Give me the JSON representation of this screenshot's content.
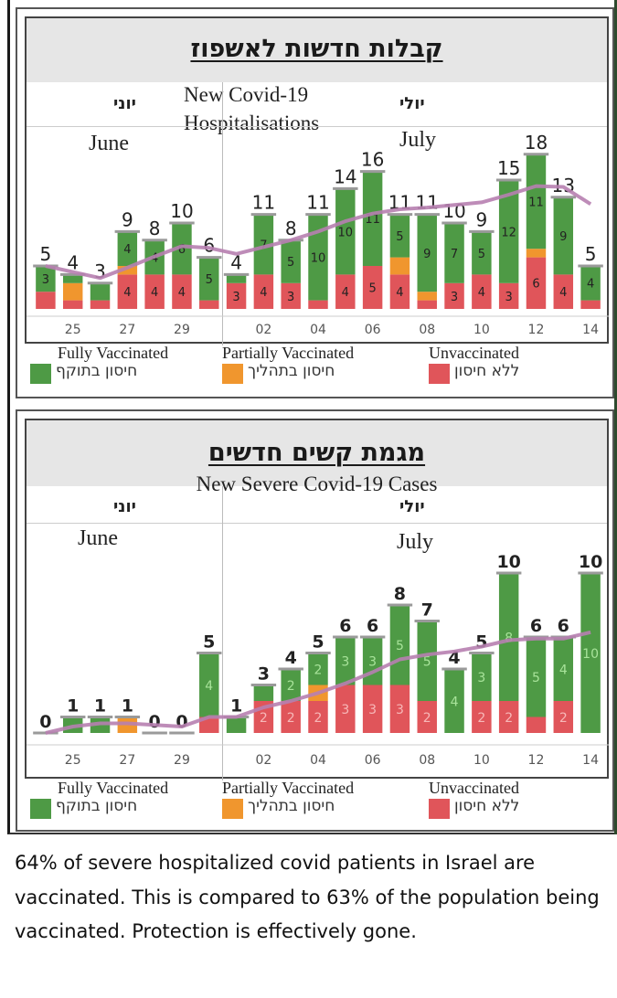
{
  "colors": {
    "fully_vaccinated": "#4e9a45",
    "partially_vaccinated": "#f0962e",
    "unvaccinated": "#e0555a",
    "trend_line": "#b77fb0",
    "bar_cap": "#9a9a9a"
  },
  "legend": [
    {
      "key": "fully_vaccinated",
      "en": "Fully Vaccinated",
      "he": "חיסון בתוקף"
    },
    {
      "key": "partially_vaccinated",
      "en": "Partially Vaccinated",
      "he": "חיסון בתהליך"
    },
    {
      "key": "unvaccinated",
      "en": "Unvaccinated",
      "he": "ללא חיסון"
    }
  ],
  "caption": " 64% of severe hospitalized covid patients in Israel are vaccinated. This is compared to 63% of the population being vaccinated. Protection is effectively gone.",
  "chart_data": [
    {
      "type": "bar",
      "stacked": true,
      "title_he": "קבלות חדשות לאשפוז",
      "title_en_line1": "New Covid-19",
      "title_en_line2": "Hospitalisations",
      "month_left_he": "יוני",
      "month_left_en": "June",
      "month_right_he": "יולי",
      "month_right_en": "July",
      "categories": [
        "24",
        "25",
        "26",
        "27",
        "28",
        "29",
        "30",
        "01",
        "02",
        "03",
        "04",
        "05",
        "06",
        "07",
        "08",
        "09",
        "10",
        "11",
        "12",
        "13",
        "14"
      ],
      "tick_labels": [
        "",
        "25",
        "",
        "27",
        "",
        "29",
        "",
        "",
        "02",
        "",
        "04",
        "",
        "06",
        "",
        "08",
        "",
        "10",
        "",
        "12",
        "",
        "14"
      ],
      "totals": [
        5,
        4,
        3,
        9,
        8,
        10,
        6,
        4,
        11,
        8,
        11,
        14,
        16,
        11,
        11,
        10,
        9,
        15,
        18,
        13,
        5
      ],
      "series": [
        {
          "name": "Unvaccinated",
          "key": "unvaccinated",
          "values": [
            2,
            1,
            1,
            4,
            4,
            4,
            1,
            3,
            4,
            3,
            1,
            4,
            5,
            4,
            1,
            3,
            4,
            3,
            6,
            4,
            1
          ],
          "labels": [
            "",
            "",
            "",
            "4",
            "4",
            "4",
            "",
            "3",
            "4",
            "3",
            "",
            "4",
            "5",
            "4",
            "",
            "3",
            "4",
            "3",
            "6",
            "4",
            ""
          ]
        },
        {
          "name": "Partially Vaccinated",
          "key": "partially_vaccinated",
          "values": [
            0,
            2,
            0,
            1,
            0,
            0,
            0,
            0,
            0,
            0,
            0,
            0,
            0,
            2,
            1,
            0,
            0,
            0,
            1,
            0,
            0
          ],
          "labels": [
            "",
            "",
            "",
            "",
            "",
            "",
            "",
            "",
            "",
            "",
            "",
            "",
            "",
            "",
            "",
            "",
            "",
            "",
            "",
            "",
            ""
          ]
        },
        {
          "name": "Fully Vaccinated",
          "key": "fully_vaccinated",
          "values": [
            3,
            1,
            2,
            4,
            4,
            6,
            5,
            1,
            7,
            5,
            10,
            10,
            11,
            5,
            9,
            7,
            5,
            12,
            11,
            9,
            4
          ],
          "labels": [
            "3",
            "",
            "",
            "4",
            "4",
            "6",
            "5",
            "",
            "7",
            "5",
            "10",
            "10",
            "11",
            "5",
            "9",
            "7",
            "5",
            "12",
            "11",
            "9",
            "4"
          ]
        }
      ],
      "trend": [
        5,
        4.3,
        3.6,
        4.8,
        6.1,
        7.3,
        7.1,
        6.4,
        7.2,
        8.0,
        9.0,
        10.2,
        11.1,
        11.6,
        11.8,
        12.1,
        12.4,
        13.3,
        14.3,
        14.2,
        12.2
      ],
      "trend_start_index": 0,
      "ylim": [
        0,
        20
      ],
      "split_index": 7
    },
    {
      "type": "bar",
      "stacked": true,
      "title_he": "מגמת קשים חדשים",
      "title_en": "New Severe Covid-19 Cases",
      "month_left_he": "יוני",
      "month_left_en": "June",
      "month_right_he": "יולי",
      "month_right_en": "July",
      "categories": [
        "24",
        "25",
        "26",
        "27",
        "28",
        "29",
        "30",
        "01",
        "02",
        "03",
        "04",
        "05",
        "06",
        "07",
        "08",
        "09",
        "10",
        "11",
        "12",
        "13",
        "14"
      ],
      "tick_labels": [
        "",
        "25",
        "",
        "27",
        "",
        "29",
        "",
        "",
        "02",
        "",
        "04",
        "",
        "06",
        "",
        "08",
        "",
        "10",
        "",
        "12",
        "",
        "14"
      ],
      "totals": [
        0,
        1,
        1,
        1,
        0,
        0,
        5,
        1,
        3,
        4,
        5,
        6,
        6,
        8,
        7,
        4,
        5,
        10,
        6,
        6,
        10
      ],
      "series": [
        {
          "name": "Unvaccinated",
          "key": "unvaccinated",
          "values": [
            0,
            0,
            0,
            0,
            0,
            0,
            1,
            0,
            2,
            2,
            2,
            3,
            3,
            3,
            2,
            0,
            2,
            2,
            1,
            2,
            0
          ],
          "labels": [
            "",
            "",
            "",
            "",
            "",
            "",
            "",
            "",
            "2",
            "2",
            "2",
            "3",
            "3",
            "3",
            "2",
            "",
            "2",
            "2",
            "",
            "2",
            ""
          ]
        },
        {
          "name": "Partially Vaccinated",
          "key": "partially_vaccinated",
          "values": [
            0,
            0,
            0,
            1,
            0,
            0,
            0,
            0,
            0,
            0,
            1,
            0,
            0,
            0,
            0,
            0,
            0,
            0,
            0,
            0,
            0
          ],
          "labels": [
            "",
            "",
            "",
            "",
            "",
            "",
            "",
            "",
            "",
            "",
            "",
            "",
            "",
            "",
            "",
            "",
            "",
            "",
            "",
            "",
            ""
          ]
        },
        {
          "name": "Fully Vaccinated",
          "key": "fully_vaccinated",
          "values": [
            0,
            1,
            1,
            0,
            0,
            0,
            4,
            1,
            1,
            2,
            2,
            3,
            3,
            5,
            5,
            4,
            3,
            8,
            5,
            4,
            10
          ],
          "labels": [
            "",
            "",
            "",
            "",
            "",
            "",
            "4",
            "",
            "",
            "2",
            "2",
            "3",
            "3",
            "5",
            "5",
            "4",
            "3",
            "8",
            "5",
            "4",
            "10"
          ]
        }
      ],
      "trend": [
        0,
        0.4,
        0.6,
        0.6,
        0.5,
        0.4,
        1.0,
        1.0,
        1.6,
        2.0,
        2.5,
        3.1,
        3.8,
        4.6,
        4.9,
        5.1,
        5.4,
        5.8,
        5.9,
        5.9,
        6.3
      ],
      "trend_start_index": 0,
      "ylim": [
        0,
        12
      ],
      "split_index": 7
    }
  ]
}
